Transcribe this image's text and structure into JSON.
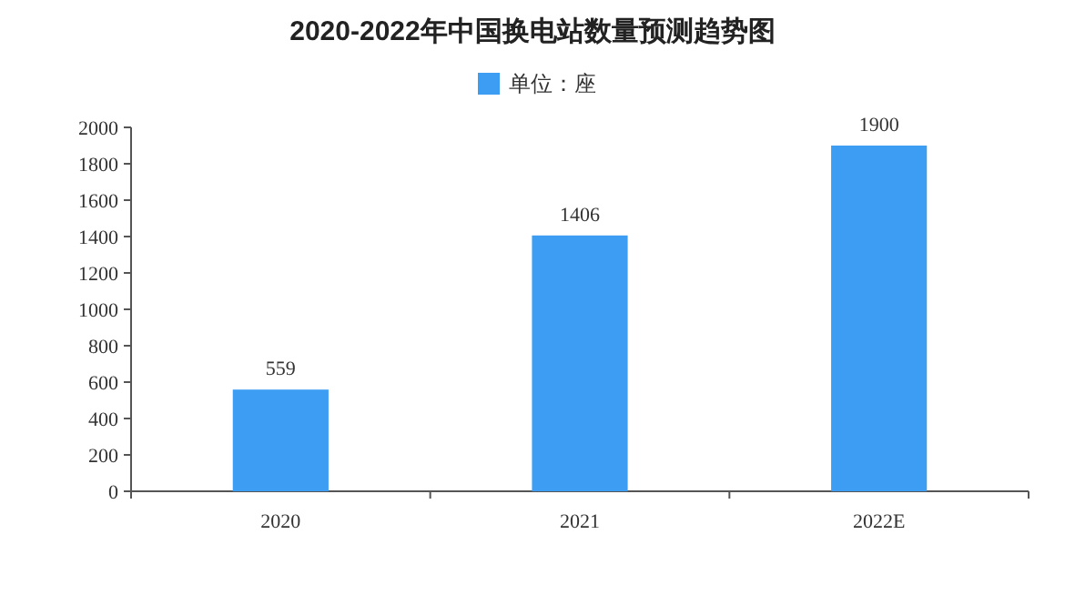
{
  "chart_data": {
    "type": "bar",
    "title": "2020-2022年中国换电站数量预测趋势图",
    "categories": [
      "2020",
      "2021",
      "2022E"
    ],
    "series": [
      {
        "name": "单位：座",
        "color": "#3d9df2",
        "values": [
          559,
          1406,
          1900
        ]
      }
    ],
    "ylim": [
      0,
      2000
    ],
    "yticks": [
      0,
      200,
      400,
      600,
      800,
      1000,
      1200,
      1400,
      1600,
      1800,
      2000
    ],
    "data_labels": true,
    "legend": "top"
  }
}
